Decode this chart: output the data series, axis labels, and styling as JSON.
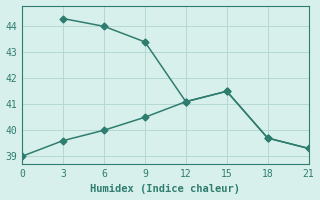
{
  "line1_x": [
    3,
    6,
    9,
    12,
    15,
    18,
    21
  ],
  "line1_y": [
    44.3,
    44.0,
    43.4,
    41.1,
    41.5,
    39.7,
    39.3
  ],
  "line2_x": [
    0,
    3,
    6,
    9,
    12,
    15,
    18,
    21
  ],
  "line2_y": [
    39.0,
    39.6,
    40.0,
    40.5,
    41.1,
    41.5,
    39.7,
    39.3
  ],
  "line_color": "#2e7d6e",
  "bg_color": "#d8f0ec",
  "grid_color": "#b5d8d2",
  "xlabel": "Humidex (Indice chaleur)",
  "xlim": [
    0,
    21
  ],
  "ylim": [
    38.7,
    44.8
  ],
  "xticks": [
    0,
    3,
    6,
    9,
    12,
    15,
    18,
    21
  ],
  "yticks": [
    39,
    40,
    41,
    42,
    43,
    44
  ],
  "markersize": 3.5,
  "linewidth": 1.1
}
